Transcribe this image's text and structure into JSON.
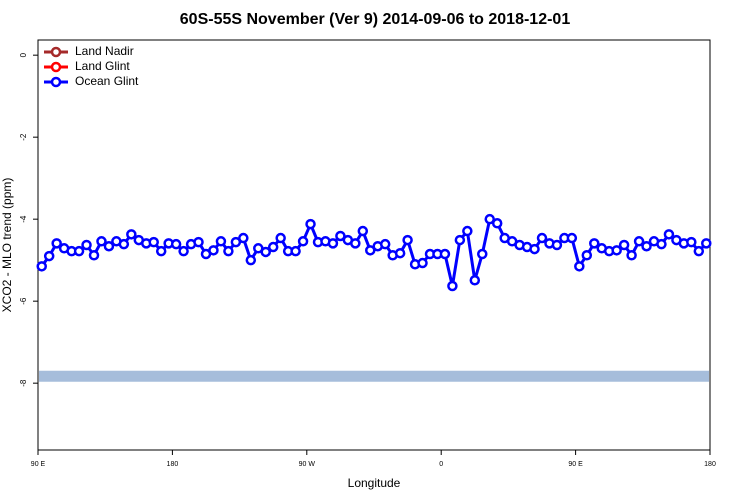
{
  "chart_data": {
    "type": "line",
    "title": "60S-55S November (Ver 9)   2014-09-06 to 2018-12-01",
    "xlabel": "Longitude",
    "ylabel": "XCO2 - MLO trend (ppm)",
    "xlim": [
      90,
      540
    ],
    "ylim": [
      -9.63,
      0.37
    ],
    "xticks": [
      {
        "value": 90,
        "label": "90 E"
      },
      180,
      {
        "value": 270,
        "label": "90 W"
      },
      {
        "value": 360,
        "label": "0"
      },
      {
        "value": 450,
        "label": "90 E"
      },
      {
        "value": 540,
        "label": "180"
      }
    ],
    "yticks": [
      0,
      -2,
      -4,
      -6,
      -8
    ],
    "legend": "top-left",
    "reference_line": {
      "value": -7.83,
      "color": "#a6bddb"
    },
    "x": [
      92.5,
      97.5,
      102.5,
      107.5,
      112.5,
      117.5,
      122.5,
      127.5,
      132.5,
      137.5,
      142.5,
      147.5,
      152.5,
      157.5,
      162.5,
      167.5,
      172.5,
      177.5,
      182.5,
      187.5,
      192.5,
      197.5,
      202.5,
      207.5,
      212.5,
      217.5,
      222.5,
      227.5,
      232.5,
      237.5,
      242.5,
      247.5,
      252.5,
      257.5,
      262.5,
      267.5,
      272.5,
      277.5,
      282.5,
      287.5,
      292.5,
      297.5,
      302.5,
      307.5,
      312.5,
      317.5,
      322.5,
      327.5,
      332.5,
      337.5,
      342.5,
      347.5,
      352.5,
      357.5,
      362.5,
      367.5,
      372.5,
      377.5,
      382.5,
      387.5,
      392.5,
      397.5,
      402.5,
      407.5,
      412.5,
      417.5,
      422.5,
      427.5,
      432.5,
      437.5,
      442.5,
      447.5,
      452.5,
      457.5,
      462.5,
      467.5,
      472.5,
      477.5,
      482.5,
      487.5,
      492.5,
      497.5,
      502.5,
      507.5,
      512.5,
      517.5,
      522.5,
      527.5,
      532.5,
      537.5
    ],
    "series": [
      {
        "name": "Land Nadir",
        "color": "#a52a2a",
        "values": [
          null,
          null,
          null,
          null,
          null,
          null,
          null,
          null,
          null,
          null,
          null,
          null,
          null,
          null,
          null,
          null,
          null,
          null,
          null,
          null,
          null,
          null,
          null,
          null,
          null,
          null,
          null,
          null,
          null,
          null,
          null,
          null,
          null,
          null,
          null,
          null,
          null,
          null,
          null,
          null,
          null,
          null,
          null,
          null,
          null,
          null,
          null,
          null,
          null,
          null,
          null,
          null,
          null,
          null,
          null,
          null,
          null,
          null,
          null,
          null,
          null,
          null,
          null,
          null,
          null,
          null,
          null,
          null,
          null,
          null,
          null,
          null,
          null,
          null,
          null,
          null,
          null,
          null,
          null,
          null,
          null,
          null,
          null,
          null,
          null,
          null,
          null,
          null,
          null,
          null
        ]
      },
      {
        "name": "Land Glint",
        "color": "#ff0000",
        "values": [
          null,
          null,
          null,
          null,
          null,
          null,
          null,
          null,
          null,
          null,
          null,
          null,
          null,
          null,
          null,
          null,
          null,
          null,
          null,
          null,
          null,
          null,
          null,
          null,
          null,
          null,
          null,
          null,
          null,
          null,
          null,
          null,
          null,
          null,
          null,
          null,
          null,
          null,
          null,
          null,
          null,
          null,
          null,
          null,
          null,
          null,
          null,
          null,
          null,
          null,
          null,
          null,
          null,
          null,
          null,
          null,
          null,
          null,
          null,
          null,
          null,
          null,
          null,
          null,
          null,
          null,
          null,
          null,
          null,
          null,
          null,
          null,
          null,
          null,
          null,
          null,
          null,
          null,
          null,
          null,
          null,
          null,
          null,
          null,
          null,
          null,
          null,
          null,
          null,
          null
        ]
      },
      {
        "name": "Ocean Glint",
        "color": "#0000ff",
        "values": [
          -5.15,
          -4.9,
          -4.59,
          -4.71,
          -4.78,
          -4.78,
          -4.63,
          -4.88,
          -4.54,
          -4.66,
          -4.54,
          -4.61,
          -4.37,
          -4.51,
          -4.59,
          -4.56,
          -4.78,
          -4.59,
          -4.61,
          -4.78,
          -4.61,
          -4.56,
          -4.85,
          -4.76,
          -4.54,
          -4.78,
          -4.56,
          -4.46,
          -5.0,
          -4.71,
          -4.8,
          -4.68,
          -4.46,
          -4.78,
          -4.78,
          -4.54,
          -4.12,
          -4.56,
          -4.54,
          -4.59,
          -4.41,
          -4.51,
          -4.59,
          -4.29,
          -4.76,
          -4.66,
          -4.61,
          -4.88,
          -4.83,
          -4.51,
          -5.1,
          -5.07,
          -4.85,
          -4.85,
          -4.85,
          -5.63,
          -4.51,
          -4.29,
          -5.49,
          -4.85,
          -4.0,
          -4.1,
          -4.46,
          -4.54,
          -4.63,
          -4.68,
          -4.73,
          -4.46,
          -4.59,
          -4.63,
          -4.46,
          -4.46,
          -5.15,
          -4.88,
          -4.59,
          -4.71,
          -4.78,
          -4.76,
          -4.63,
          -4.88,
          -4.54,
          -4.66,
          -4.54,
          -4.61,
          -4.37,
          -4.51,
          -4.59,
          -4.56,
          -4.78,
          -4.59
        ]
      }
    ]
  }
}
